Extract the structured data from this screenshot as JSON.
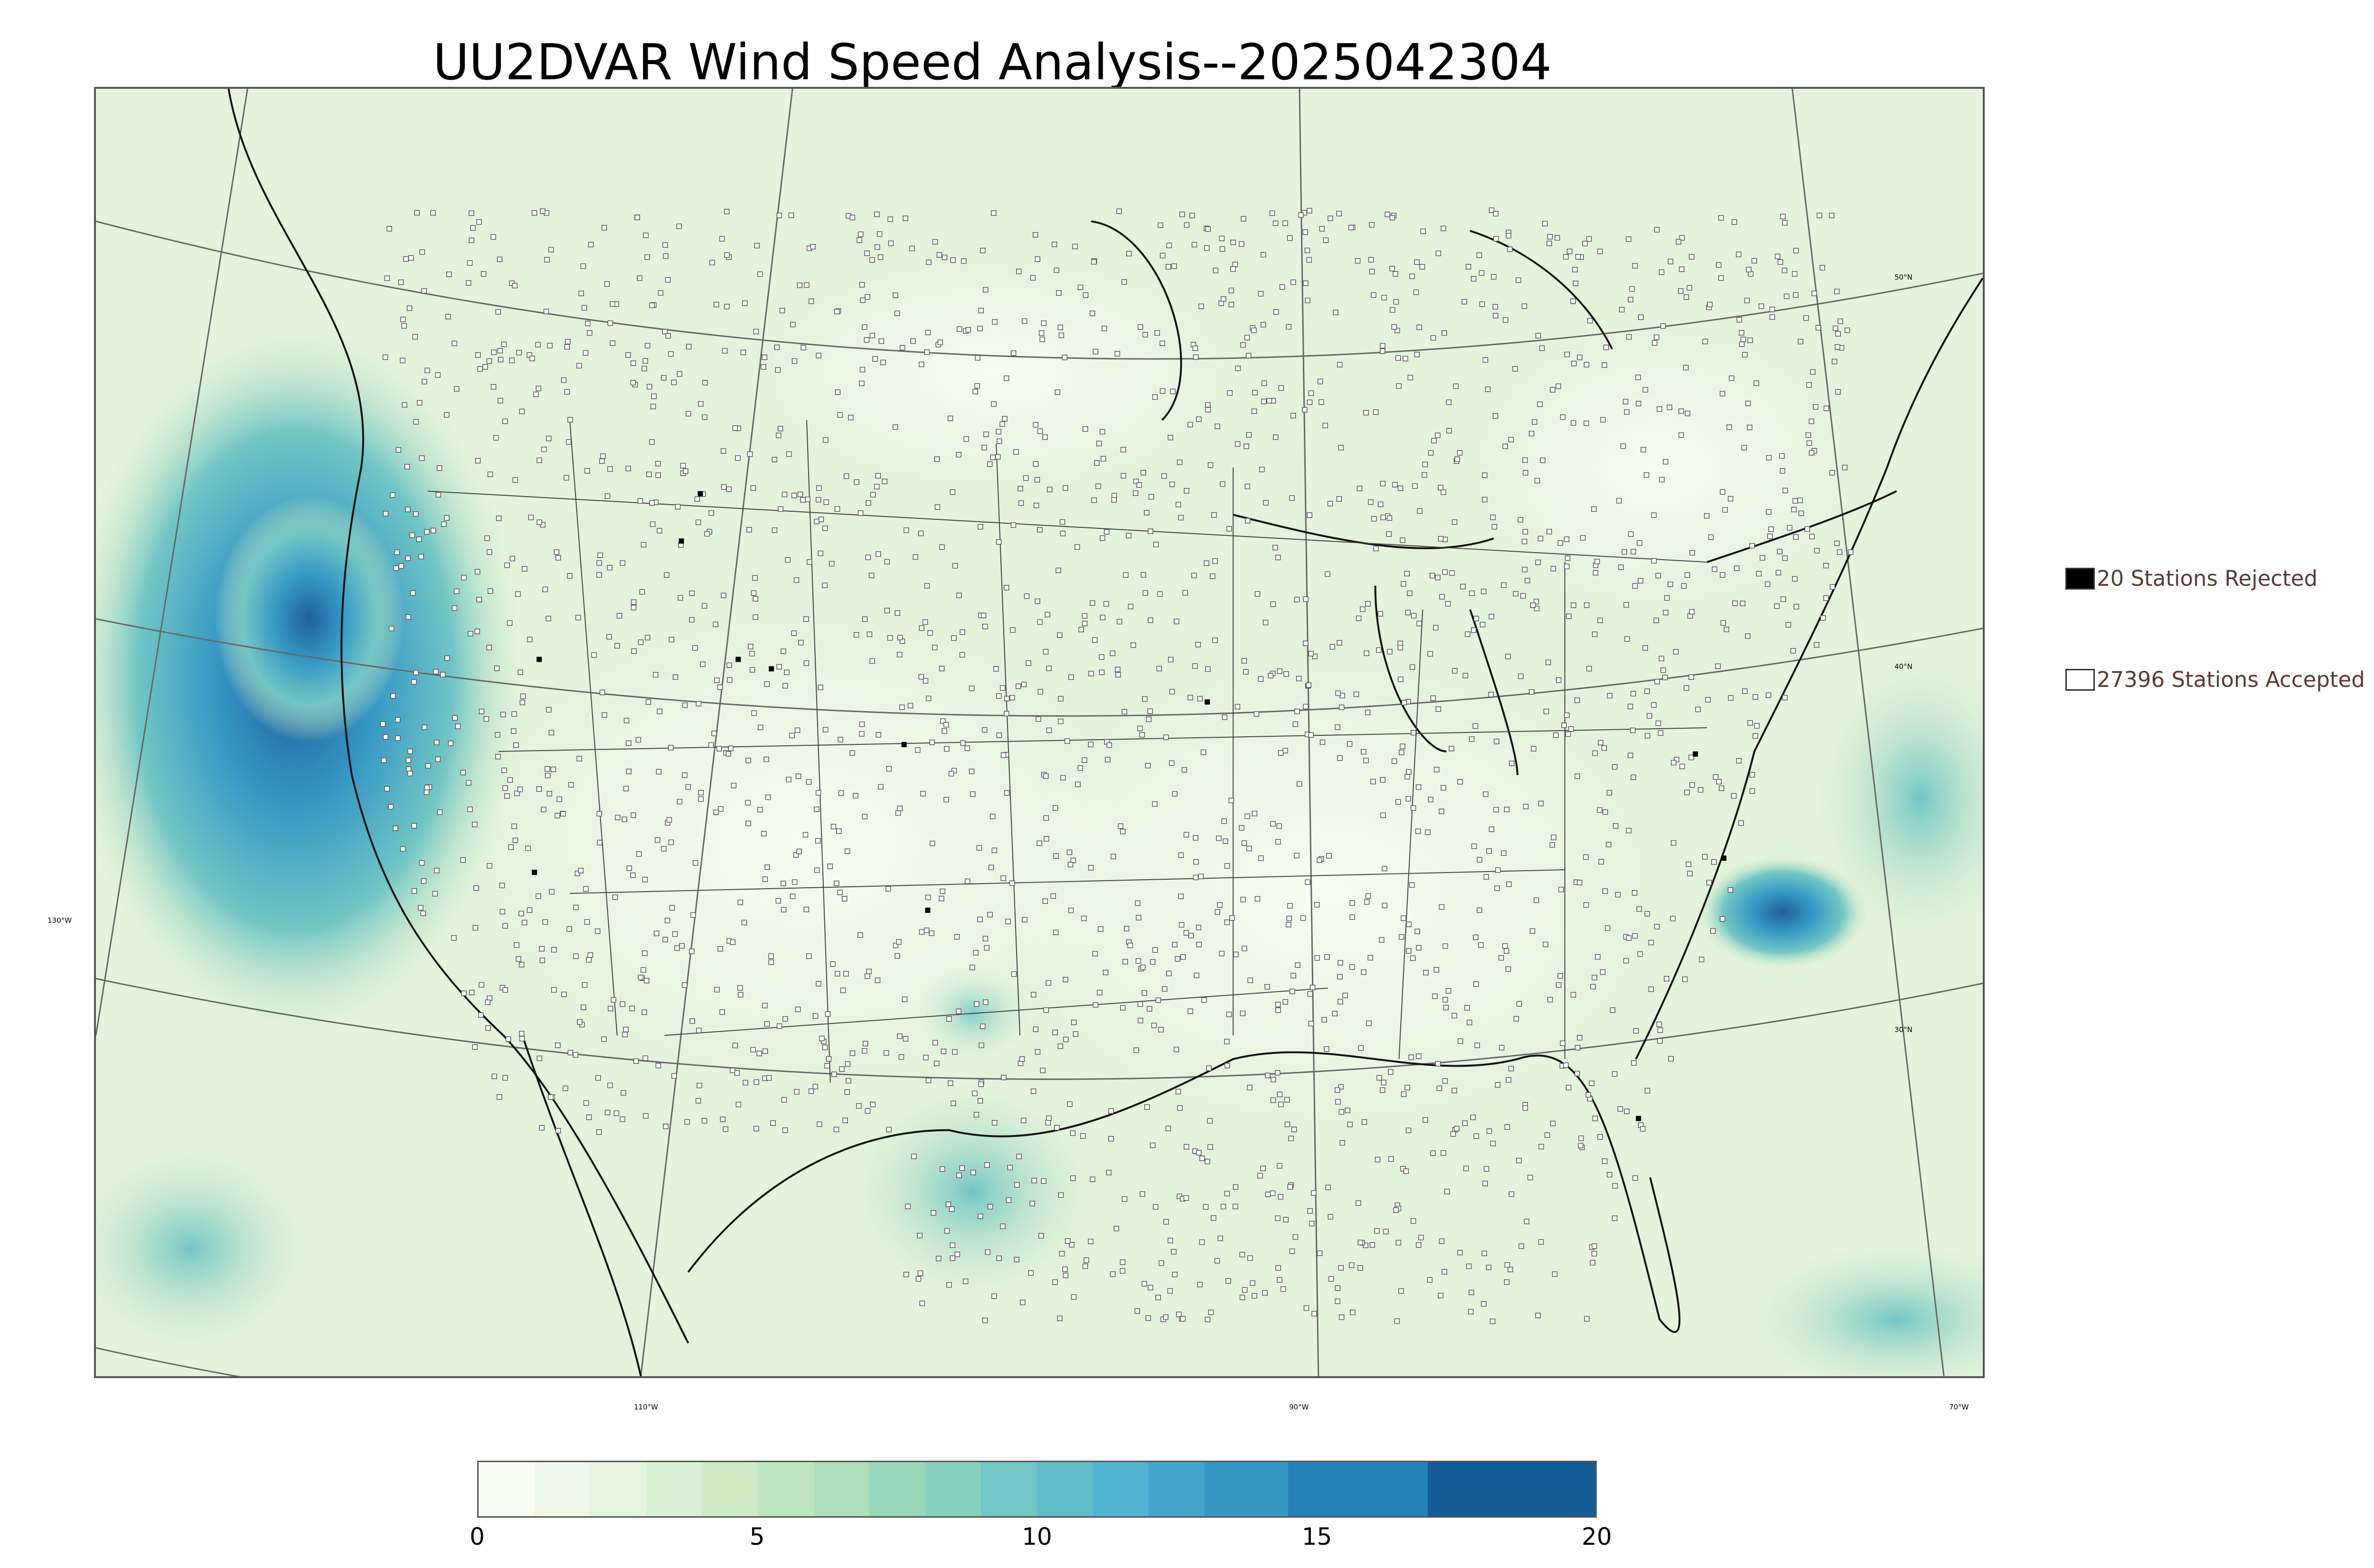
{
  "title": "UU2DVAR Wind Speed Analysis--2025042304",
  "map": {
    "projection": "lambert-conformal",
    "field": "wind speed",
    "base_color": "#eaf6e4",
    "high_wind_color": "#1f5f9c",
    "lat_labels": [
      "50°N",
      "40°N",
      "30°N"
    ],
    "lon_labels": [
      "130°W",
      "110°W",
      "90°W",
      "70°W"
    ],
    "station_marker_color": "#555555"
  },
  "legend": {
    "rejected": {
      "count_text": "20 Stations Rejected",
      "swatch_color": "#000000"
    },
    "accepted": {
      "count_text": "27396 Stations Accepted",
      "swatch_color": "#ffffff"
    }
  },
  "colorbar": {
    "min": 0,
    "max": 20,
    "ticks": [
      "0",
      "5",
      "10",
      "15",
      "20"
    ],
    "levels": [
      {
        "from": 0,
        "to": 1,
        "color": "#f7fcf0"
      },
      {
        "from": 1,
        "to": 2,
        "color": "#eef8e8"
      },
      {
        "from": 2,
        "to": 3,
        "color": "#e4f4dd"
      },
      {
        "from": 3,
        "to": 4,
        "color": "#d9f0d3"
      },
      {
        "from": 4,
        "to": 5,
        "color": "#cdebc5"
      },
      {
        "from": 5,
        "to": 6,
        "color": "#bfe6be"
      },
      {
        "from": 6,
        "to": 7,
        "color": "#addfb8"
      },
      {
        "from": 7,
        "to": 8,
        "color": "#99d7ba"
      },
      {
        "from": 8,
        "to": 9,
        "color": "#86d0bd"
      },
      {
        "from": 9,
        "to": 10,
        "color": "#72c6c5"
      },
      {
        "from": 10,
        "to": 11,
        "color": "#62bdcb"
      },
      {
        "from": 11,
        "to": 12,
        "color": "#52b3d0"
      },
      {
        "from": 12,
        "to": 13,
        "color": "#43a5cc"
      },
      {
        "from": 13,
        "to": 14.5,
        "color": "#3597c4"
      },
      {
        "from": 14.5,
        "to": 17,
        "color": "#2681b8"
      },
      {
        "from": 17,
        "to": 20,
        "color": "#135c96"
      }
    ]
  }
}
